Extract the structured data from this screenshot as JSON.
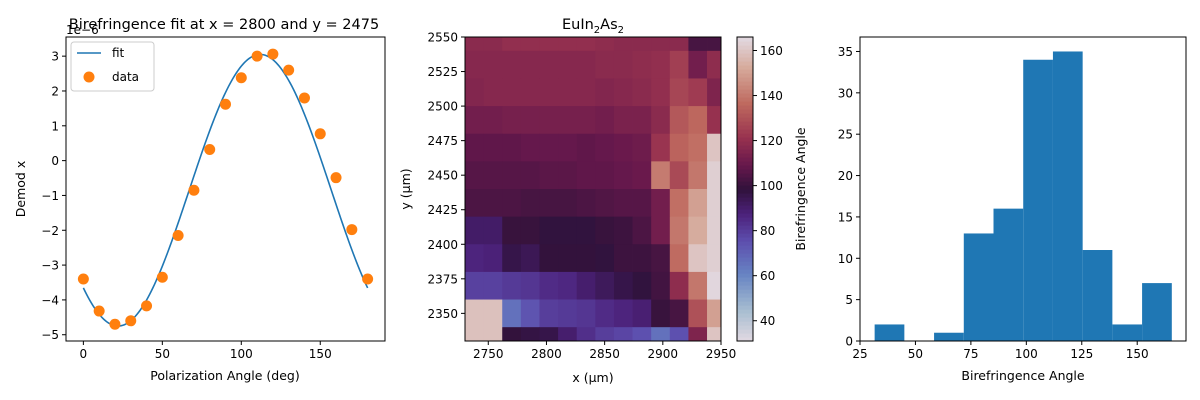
{
  "chart_data": [
    {
      "type": "line",
      "title": "Birefringence fit at x = 2800 and y = 2475",
      "xlabel": "Polarization Angle (deg)",
      "ylabel": "Demod x",
      "offset_text": "1e−6",
      "xlim": [
        -11,
        191
      ],
      "ylim": [
        -5.18,
        3.55
      ],
      "xticks": [
        0,
        50,
        100,
        150
      ],
      "yticks": [
        -5,
        -4,
        -3,
        -2,
        -1,
        0,
        1,
        2,
        3
      ],
      "legend": {
        "position": "upper-left",
        "entries": [
          "fit",
          "data"
        ]
      },
      "series": [
        {
          "name": "fit",
          "kind": "line",
          "color": "#1f77b4",
          "model": {
            "amplitude": 3.9,
            "offset": -0.85,
            "phase_deg": 112
          },
          "x_range": [
            0,
            180
          ]
        },
        {
          "name": "data",
          "kind": "scatter",
          "color": "#ff7f0e",
          "x": [
            0,
            10,
            20,
            30,
            40,
            50,
            60,
            70,
            80,
            90,
            100,
            110,
            120,
            130,
            140,
            150,
            160,
            170,
            180
          ],
          "y": [
            -3.4,
            -4.32,
            -4.7,
            -4.6,
            -4.17,
            -3.35,
            -2.15,
            -0.85,
            0.32,
            1.62,
            2.38,
            3.0,
            3.06,
            2.6,
            1.8,
            0.77,
            -0.49,
            -1.98,
            -3.4
          ]
        }
      ]
    },
    {
      "type": "heatmap",
      "title_parts": [
        "EuIn",
        "2",
        "As",
        "2"
      ],
      "xlabel": "x (μm)",
      "ylabel": "y (μm)",
      "colorbar_label": "Birefringence Angle",
      "colormap": "twilight",
      "xlim": [
        2730,
        2950
      ],
      "ylim": [
        2330,
        2550
      ],
      "xticks": [
        2750,
        2800,
        2850,
        2900,
        2950
      ],
      "yticks": [
        2350,
        2375,
        2400,
        2425,
        2450,
        2475,
        2500,
        2525,
        2550
      ],
      "clim": [
        31,
        166
      ],
      "cbar_ticks": [
        40,
        60,
        80,
        100,
        120,
        140,
        160
      ],
      "x_edges": [
        2730,
        2746,
        2762,
        2778,
        2794,
        2810,
        2826,
        2842,
        2858,
        2874,
        2890,
        2906,
        2922,
        2938,
        2950
      ],
      "y_edges": [
        2550,
        2540,
        2520,
        2500,
        2480,
        2460,
        2440,
        2420,
        2400,
        2380,
        2360,
        2340,
        2330
      ],
      "values": [
        [
          118,
          118,
          120,
          120,
          120,
          120,
          120,
          119,
          118,
          118,
          118,
          118,
          103,
          103
        ],
        [
          117,
          117,
          117,
          117,
          117,
          117,
          117,
          118,
          118,
          119,
          120,
          125,
          112,
          119
        ],
        [
          116,
          117,
          117,
          117,
          117,
          117,
          117,
          116,
          117,
          118,
          120,
          127,
          124,
          115
        ],
        [
          112,
          112,
          113,
          113,
          113,
          113,
          113,
          112,
          114,
          114,
          118,
          132,
          136,
          121
        ],
        [
          108,
          108,
          108,
          109,
          109,
          109,
          108,
          109,
          110,
          111,
          122,
          135,
          138,
          160
        ],
        [
          106,
          106,
          106,
          106,
          107,
          107,
          108,
          108,
          109,
          110,
          141,
          128,
          140,
          163
        ],
        [
          104,
          104,
          104,
          103,
          103,
          103,
          104,
          105,
          106,
          106,
          112,
          138,
          150,
          163
        ],
        [
          91,
          91,
          100,
          100,
          98,
          98,
          98,
          100,
          101,
          104,
          112,
          140,
          153,
          163
        ],
        [
          87,
          88,
          96,
          94,
          99,
          99,
          99,
          98,
          101,
          101,
          103,
          137,
          160,
          163
        ],
        [
          79,
          79,
          81,
          82,
          85,
          86,
          90,
          93,
          96,
          98,
          102,
          119,
          140,
          165
        ],
        [
          159,
          159,
          66,
          74,
          80,
          81,
          82,
          85,
          87,
          89,
          100,
          103,
          130,
          150
        ],
        [
          159,
          159,
          99,
          97,
          96,
          90,
          84,
          80,
          78,
          75,
          66,
          75,
          115,
          160
        ]
      ]
    },
    {
      "type": "bar",
      "subtype": "histogram",
      "xlabel": "Birefringence Angle",
      "xlim": [
        25,
        172
      ],
      "ylim": [
        0,
        36.75
      ],
      "xticks": [
        25,
        50,
        75,
        100,
        125,
        150
      ],
      "yticks": [
        0,
        5,
        10,
        15,
        20,
        25,
        30,
        35
      ],
      "color": "#1f77b4",
      "bin_edges": [
        31.6,
        45.0,
        58.4,
        71.8,
        85.2,
        98.6,
        112.0,
        125.4,
        138.8,
        152.2,
        165.6
      ],
      "counts": [
        2,
        0,
        1,
        13,
        16,
        34,
        35,
        11,
        2,
        7
      ]
    }
  ]
}
